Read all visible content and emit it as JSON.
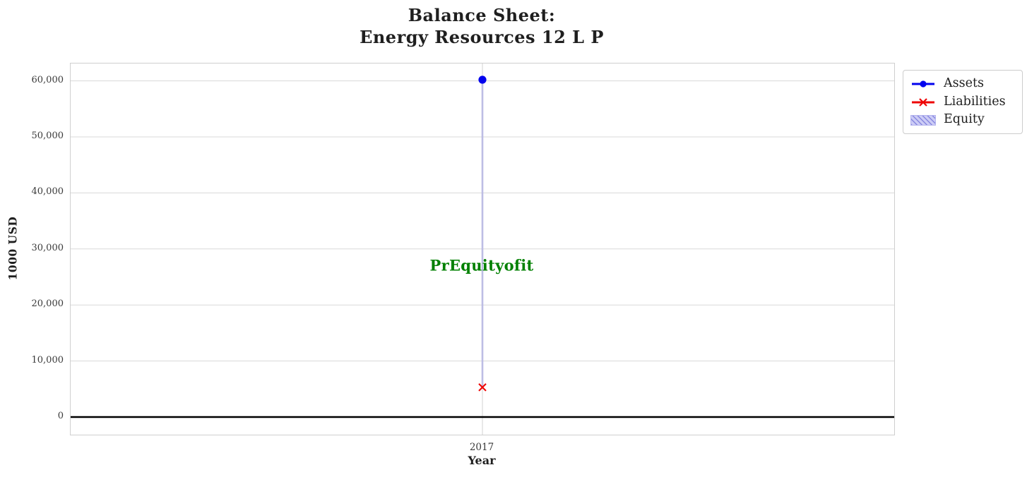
{
  "title": "Balance Sheet:\nEnergy Resources 12 L P",
  "axes": {
    "x_label": "Year",
    "y_label": "1000 USD",
    "x_tick_labels": [
      "2017"
    ],
    "y_tick_labels": [
      "0",
      "10,000",
      "20,000",
      "30,000",
      "40,000",
      "50,000",
      "60,000"
    ]
  },
  "legend": {
    "items": [
      {
        "label": "Assets",
        "marker": "line-with-circle",
        "color": "#0202ee"
      },
      {
        "label": "Liabilities",
        "marker": "line-with-x",
        "color": "#ee0606"
      },
      {
        "label": "Equity",
        "marker": "hatched-patch",
        "fill": "#ccccf5",
        "hatch_color": "#8888e0",
        "border_color": "#b4b4ee"
      }
    ]
  },
  "annotation": {
    "text": "PrEquityofit",
    "color": "#008000"
  },
  "colors": {
    "grid": "#d8d8d8",
    "plot_border": "#cfcfcf",
    "zero_line": "#000000",
    "equity_band_line": "#bdbde4",
    "title_text": "#1f1f1f",
    "tick_text": "#3a3a3a"
  },
  "chart_data": {
    "type": "line",
    "title": "Balance Sheet: Energy Resources 12 L P",
    "xlabel": "Year",
    "ylabel": "1000 USD",
    "x": [
      2017
    ],
    "series": [
      {
        "name": "Assets",
        "values": [
          60200
        ],
        "color": "#0202ee",
        "marker": "o"
      },
      {
        "name": "Liabilities",
        "values": [
          5300
        ],
        "color": "#ee0606",
        "marker": "x"
      }
    ],
    "equity_band": {
      "name": "Equity",
      "lower": [
        5300
      ],
      "upper": [
        60200
      ],
      "style": "hatched band between Liabilities and Assets, collapses to vertical line at single x"
    },
    "xlim": [
      2016.5,
      2017.5
    ],
    "ylim": [
      -3150,
      63100
    ],
    "y_ticks": [
      0,
      10000,
      20000,
      30000,
      40000,
      50000,
      60000
    ],
    "grid": true,
    "legend_position": "outside upper right",
    "annotation": {
      "text": "PrEquityofit",
      "x": 2017,
      "y": 27000
    }
  }
}
